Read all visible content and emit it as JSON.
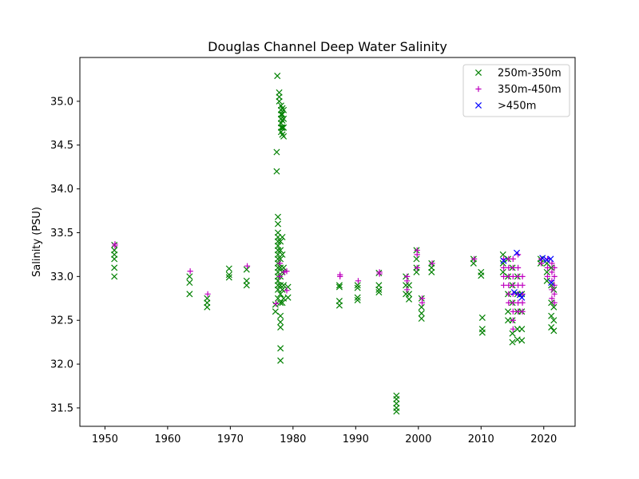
{
  "chart_data": {
    "type": "scatter",
    "title": "Douglas Channel Deep Water Salinity",
    "xlabel": "",
    "ylabel": "Salinity (PSU)",
    "xlim": [
      1946.0,
      2025.0
    ],
    "ylim": [
      31.29,
      35.5
    ],
    "xticks": [
      1950,
      1960,
      1970,
      1980,
      1990,
      2000,
      2010,
      2020
    ],
    "yticks": [
      31.5,
      32.0,
      32.5,
      33.0,
      33.5,
      34.0,
      34.5,
      35.0
    ],
    "xtick_labels": [
      "1950",
      "1960",
      "1970",
      "1980",
      "1990",
      "2000",
      "2010",
      "2020"
    ],
    "ytick_labels": [
      "31.5",
      "32.0",
      "32.5",
      "33.0",
      "33.5",
      "34.0",
      "34.5",
      "35.0"
    ],
    "grid": false,
    "legend_position": "top-right",
    "series": [
      {
        "name": "250m-350m",
        "marker": "x",
        "color": "#008000",
        "points": [
          [
            1951.5,
            33.36
          ],
          [
            1951.5,
            33.3
          ],
          [
            1951.5,
            33.25
          ],
          [
            1951.5,
            33.2
          ],
          [
            1951.5,
            33.1
          ],
          [
            1951.5,
            33.0
          ],
          [
            1963.5,
            33.0
          ],
          [
            1963.5,
            32.93
          ],
          [
            1963.5,
            32.8
          ],
          [
            1966.3,
            32.75
          ],
          [
            1966.3,
            32.7
          ],
          [
            1966.3,
            32.65
          ],
          [
            1969.8,
            33.09
          ],
          [
            1969.8,
            33.02
          ],
          [
            1969.8,
            32.99
          ],
          [
            1972.6,
            33.08
          ],
          [
            1972.6,
            32.95
          ],
          [
            1972.6,
            32.9
          ],
          [
            1977.2,
            32.6
          ],
          [
            1977.2,
            32.68
          ],
          [
            1977.4,
            34.42
          ],
          [
            1977.4,
            34.2
          ],
          [
            1977.5,
            35.29
          ],
          [
            1977.6,
            33.68
          ],
          [
            1977.6,
            33.6
          ],
          [
            1977.6,
            33.5
          ],
          [
            1977.6,
            33.45
          ],
          [
            1977.6,
            33.4
          ],
          [
            1977.6,
            33.35
          ],
          [
            1977.6,
            33.3
          ],
          [
            1977.6,
            33.25
          ],
          [
            1977.6,
            33.2
          ],
          [
            1977.6,
            33.15
          ],
          [
            1977.6,
            33.1
          ],
          [
            1977.6,
            33.05
          ],
          [
            1977.6,
            33.0
          ],
          [
            1977.6,
            32.95
          ],
          [
            1977.6,
            32.9
          ],
          [
            1977.6,
            32.85
          ],
          [
            1977.6,
            32.75
          ],
          [
            1977.8,
            35.1
          ],
          [
            1977.8,
            35.05
          ],
          [
            1977.8,
            35.0
          ],
          [
            1978.0,
            33.4
          ],
          [
            1978.0,
            33.3
          ],
          [
            1978.0,
            33.2
          ],
          [
            1978.0,
            33.1
          ],
          [
            1978.0,
            33.0
          ],
          [
            1978.0,
            32.9
          ],
          [
            1978.0,
            32.8
          ],
          [
            1978.0,
            32.7
          ],
          [
            1978.0,
            32.55
          ],
          [
            1978.0,
            32.48
          ],
          [
            1978.0,
            32.42
          ],
          [
            1978.0,
            32.18
          ],
          [
            1978.0,
            32.04
          ],
          [
            1978.1,
            34.95
          ],
          [
            1978.1,
            34.9
          ],
          [
            1978.1,
            34.85
          ],
          [
            1978.1,
            34.8
          ],
          [
            1978.1,
            34.75
          ],
          [
            1978.1,
            34.7
          ],
          [
            1978.1,
            34.65
          ],
          [
            1978.3,
            34.92
          ],
          [
            1978.3,
            34.85
          ],
          [
            1978.3,
            34.78
          ],
          [
            1978.3,
            34.7
          ],
          [
            1978.3,
            34.62
          ],
          [
            1978.3,
            33.45
          ],
          [
            1978.3,
            33.25
          ],
          [
            1978.3,
            33.05
          ],
          [
            1978.3,
            32.85
          ],
          [
            1978.3,
            32.7
          ],
          [
            1978.5,
            34.9
          ],
          [
            1978.5,
            34.8
          ],
          [
            1978.5,
            34.7
          ],
          [
            1978.5,
            34.6
          ],
          [
            1978.5,
            33.1
          ],
          [
            1978.5,
            32.9
          ],
          [
            1978.5,
            32.75
          ],
          [
            1979.2,
            32.88
          ],
          [
            1979.2,
            32.76
          ],
          [
            1987.4,
            32.9
          ],
          [
            1987.4,
            32.88
          ],
          [
            1987.4,
            32.72
          ],
          [
            1987.4,
            32.67
          ],
          [
            1990.3,
            32.9
          ],
          [
            1990.3,
            32.87
          ],
          [
            1990.3,
            32.76
          ],
          [
            1990.3,
            32.73
          ],
          [
            1993.7,
            33.04
          ],
          [
            1993.7,
            32.9
          ],
          [
            1993.7,
            32.85
          ],
          [
            1993.7,
            32.82
          ],
          [
            1996.5,
            31.64
          ],
          [
            1996.5,
            31.6
          ],
          [
            1996.5,
            31.55
          ],
          [
            1996.5,
            31.5
          ],
          [
            1996.5,
            31.46
          ],
          [
            1998.0,
            33.0
          ],
          [
            1998.0,
            32.9
          ],
          [
            1998.0,
            32.8
          ],
          [
            1998.5,
            32.9
          ],
          [
            1998.5,
            32.8
          ],
          [
            1998.5,
            32.74
          ],
          [
            1999.7,
            33.3
          ],
          [
            1999.7,
            33.2
          ],
          [
            1999.7,
            33.1
          ],
          [
            1999.7,
            33.05
          ],
          [
            2000.5,
            32.75
          ],
          [
            2000.5,
            32.65
          ],
          [
            2000.5,
            32.58
          ],
          [
            2000.5,
            32.52
          ],
          [
            2002.1,
            33.15
          ],
          [
            2002.1,
            33.1
          ],
          [
            2002.1,
            33.05
          ],
          [
            2008.8,
            33.2
          ],
          [
            2008.8,
            33.15
          ],
          [
            2010.0,
            33.05
          ],
          [
            2010.0,
            33.01
          ],
          [
            2010.2,
            32.53
          ],
          [
            2010.2,
            32.4
          ],
          [
            2010.2,
            32.36
          ],
          [
            2013.5,
            33.25
          ],
          [
            2013.5,
            33.15
          ],
          [
            2013.5,
            33.05
          ],
          [
            2014.3,
            33.2
          ],
          [
            2014.3,
            33.0
          ],
          [
            2014.3,
            32.8
          ],
          [
            2014.3,
            32.6
          ],
          [
            2014.3,
            32.5
          ],
          [
            2015.0,
            33.1
          ],
          [
            2015.0,
            32.9
          ],
          [
            2015.0,
            32.7
          ],
          [
            2015.0,
            32.5
          ],
          [
            2015.0,
            32.35
          ],
          [
            2015.0,
            32.25
          ],
          [
            2015.8,
            33.0
          ],
          [
            2015.8,
            32.8
          ],
          [
            2015.8,
            32.6
          ],
          [
            2015.8,
            32.4
          ],
          [
            2015.8,
            32.28
          ],
          [
            2016.5,
            32.8
          ],
          [
            2016.5,
            32.6
          ],
          [
            2016.5,
            32.4
          ],
          [
            2016.5,
            32.27
          ],
          [
            2019.5,
            33.2
          ],
          [
            2019.5,
            33.15
          ],
          [
            2020.5,
            33.15
          ],
          [
            2020.5,
            33.05
          ],
          [
            2020.5,
            32.95
          ],
          [
            2021.2,
            33.1
          ],
          [
            2021.2,
            32.9
          ],
          [
            2021.2,
            32.7
          ],
          [
            2021.2,
            32.55
          ],
          [
            2021.2,
            32.42
          ],
          [
            2021.6,
            32.85
          ],
          [
            2021.6,
            32.65
          ],
          [
            2021.6,
            32.5
          ],
          [
            2021.6,
            32.38
          ]
        ]
      },
      {
        "name": "350m-450m",
        "marker": "+",
        "color": "#bf00bf",
        "points": [
          [
            1951.6,
            33.37
          ],
          [
            1951.6,
            33.35
          ],
          [
            1963.6,
            33.06
          ],
          [
            1966.4,
            32.8
          ],
          [
            1972.7,
            33.12
          ],
          [
            1977.3,
            32.69
          ],
          [
            1977.9,
            33.15
          ],
          [
            1977.9,
            33.0
          ],
          [
            1978.6,
            33.05
          ],
          [
            1979.0,
            33.06
          ],
          [
            1979.0,
            32.84
          ],
          [
            1987.5,
            33.0
          ],
          [
            1987.5,
            33.02
          ],
          [
            1990.4,
            32.95
          ],
          [
            1993.8,
            33.05
          ],
          [
            1993.8,
            33.03
          ],
          [
            1998.2,
            33.0
          ],
          [
            1998.2,
            32.95
          ],
          [
            1998.2,
            32.85
          ],
          [
            1999.8,
            33.3
          ],
          [
            1999.8,
            33.25
          ],
          [
            1999.8,
            33.1
          ],
          [
            2000.6,
            32.75
          ],
          [
            2000.6,
            32.7
          ],
          [
            2002.2,
            33.15
          ],
          [
            2008.9,
            33.2
          ],
          [
            2013.6,
            33.2
          ],
          [
            2013.6,
            33.1
          ],
          [
            2013.6,
            33.0
          ],
          [
            2013.6,
            32.9
          ],
          [
            2014.4,
            33.2
          ],
          [
            2014.4,
            33.1
          ],
          [
            2014.4,
            33.0
          ],
          [
            2014.4,
            32.9
          ],
          [
            2014.4,
            32.8
          ],
          [
            2014.4,
            32.7
          ],
          [
            2015.1,
            33.2
          ],
          [
            2015.1,
            33.1
          ],
          [
            2015.1,
            33.0
          ],
          [
            2015.1,
            32.9
          ],
          [
            2015.1,
            32.8
          ],
          [
            2015.1,
            32.7
          ],
          [
            2015.1,
            32.6
          ],
          [
            2015.1,
            32.5
          ],
          [
            2015.1,
            32.4
          ],
          [
            2015.9,
            33.25
          ],
          [
            2015.9,
            33.1
          ],
          [
            2015.9,
            33.0
          ],
          [
            2015.9,
            32.9
          ],
          [
            2015.9,
            32.8
          ],
          [
            2015.9,
            32.7
          ],
          [
            2015.9,
            32.6
          ],
          [
            2016.6,
            33.0
          ],
          [
            2016.6,
            32.9
          ],
          [
            2016.6,
            32.8
          ],
          [
            2016.6,
            32.7
          ],
          [
            2016.6,
            32.6
          ],
          [
            2019.6,
            33.2
          ],
          [
            2019.6,
            33.15
          ],
          [
            2020.6,
            33.2
          ],
          [
            2020.6,
            33.1
          ],
          [
            2020.6,
            33.0
          ],
          [
            2021.3,
            33.15
          ],
          [
            2021.3,
            33.05
          ],
          [
            2021.3,
            32.95
          ],
          [
            2021.3,
            32.85
          ],
          [
            2021.3,
            32.75
          ],
          [
            2021.7,
            33.1
          ],
          [
            2021.7,
            33.0
          ],
          [
            2021.7,
            32.9
          ],
          [
            2021.7,
            32.8
          ],
          [
            2021.7,
            32.7
          ]
        ]
      },
      {
        "name": ">450m",
        "marker": "x",
        "color": "#0000ff",
        "points": [
          [
            2013.6,
            33.18
          ],
          [
            2015.3,
            32.82
          ],
          [
            2015.7,
            33.27
          ],
          [
            2016.2,
            32.79
          ],
          [
            2016.5,
            32.76
          ],
          [
            2019.8,
            33.21
          ],
          [
            2020.5,
            33.19
          ],
          [
            2021.1,
            33.2
          ],
          [
            2021.2,
            32.93
          ]
        ]
      }
    ]
  }
}
